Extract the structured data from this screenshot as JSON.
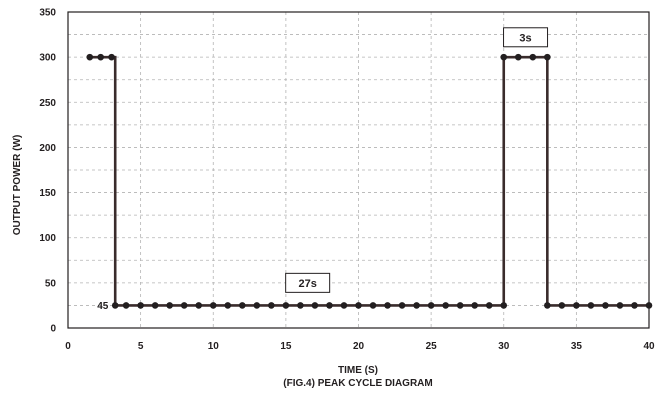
{
  "chart_data": {
    "type": "line",
    "xlabel": "TIME (S)",
    "ylabel": "OUTPUT POWER (W)",
    "caption": "(FIG.4) PEAK CYCLE DIAGRAM",
    "xlim": [
      0,
      40
    ],
    "ylim": [
      0,
      350
    ],
    "x_ticks": [
      0,
      5,
      10,
      15,
      20,
      25,
      30,
      35,
      40
    ],
    "y_ticks": [
      0,
      50,
      100,
      150,
      200,
      250,
      300,
      350
    ],
    "grid": true,
    "series": [
      {
        "points": [
          [
            1.5,
            300
          ],
          [
            2.25,
            300
          ],
          [
            3.0,
            300
          ],
          [
            3.25,
            300
          ],
          [
            3.25,
            25
          ],
          [
            4.0,
            25
          ],
          [
            5.0,
            25
          ],
          [
            6.0,
            25
          ],
          [
            7.0,
            25
          ],
          [
            8.0,
            25
          ],
          [
            9.0,
            25
          ],
          [
            10.0,
            25
          ],
          [
            11.0,
            25
          ],
          [
            12.0,
            25
          ],
          [
            13.0,
            25
          ],
          [
            14.0,
            25
          ],
          [
            15.0,
            25
          ],
          [
            16.0,
            25
          ],
          [
            17.0,
            25
          ],
          [
            18.0,
            25
          ],
          [
            19.0,
            25
          ],
          [
            20.0,
            25
          ],
          [
            21.0,
            25
          ],
          [
            22.0,
            25
          ],
          [
            23.0,
            25
          ],
          [
            24.0,
            25
          ],
          [
            25.0,
            25
          ],
          [
            26.0,
            25
          ],
          [
            27.0,
            25
          ],
          [
            28.0,
            25
          ],
          [
            29.0,
            25
          ],
          [
            30.0,
            25
          ],
          [
            30.0,
            300
          ],
          [
            31.0,
            300
          ],
          [
            32.0,
            300
          ],
          [
            33.0,
            300
          ],
          [
            33.0,
            25
          ],
          [
            34.0,
            25
          ],
          [
            35.0,
            25
          ],
          [
            36.0,
            25
          ],
          [
            37.0,
            25
          ],
          [
            38.0,
            25
          ],
          [
            39.0,
            25
          ],
          [
            40.0,
            25
          ]
        ]
      }
    ],
    "marker_points": [
      [
        1.5,
        300
      ],
      [
        2.25,
        300
      ],
      [
        3.0,
        300
      ],
      [
        3.25,
        25
      ],
      [
        4.0,
        25
      ],
      [
        5.0,
        25
      ],
      [
        6.0,
        25
      ],
      [
        7.0,
        25
      ],
      [
        8.0,
        25
      ],
      [
        9.0,
        25
      ],
      [
        10.0,
        25
      ],
      [
        11.0,
        25
      ],
      [
        12.0,
        25
      ],
      [
        13.0,
        25
      ],
      [
        14.0,
        25
      ],
      [
        15.0,
        25
      ],
      [
        16.0,
        25
      ],
      [
        17.0,
        25
      ],
      [
        18.0,
        25
      ],
      [
        19.0,
        25
      ],
      [
        20.0,
        25
      ],
      [
        21.0,
        25
      ],
      [
        22.0,
        25
      ],
      [
        23.0,
        25
      ],
      [
        24.0,
        25
      ],
      [
        25.0,
        25
      ],
      [
        26.0,
        25
      ],
      [
        27.0,
        25
      ],
      [
        28.0,
        25
      ],
      [
        29.0,
        25
      ],
      [
        30.0,
        25
      ],
      [
        30.0,
        300
      ],
      [
        31.0,
        300
      ],
      [
        32.0,
        300
      ],
      [
        33.0,
        300
      ],
      [
        33.0,
        25
      ],
      [
        34.0,
        25
      ],
      [
        35.0,
        25
      ],
      [
        36.0,
        25
      ],
      [
        37.0,
        25
      ],
      [
        38.0,
        25
      ],
      [
        39.0,
        25
      ],
      [
        40.0,
        25
      ]
    ],
    "annotations": [
      {
        "text": "27s",
        "x": 16.5,
        "y": 50
      },
      {
        "text": "3s",
        "x": 31.5,
        "y": 322
      }
    ],
    "value_labels": [
      {
        "text": "45",
        "x": 0.5,
        "y": 25
      }
    ]
  }
}
